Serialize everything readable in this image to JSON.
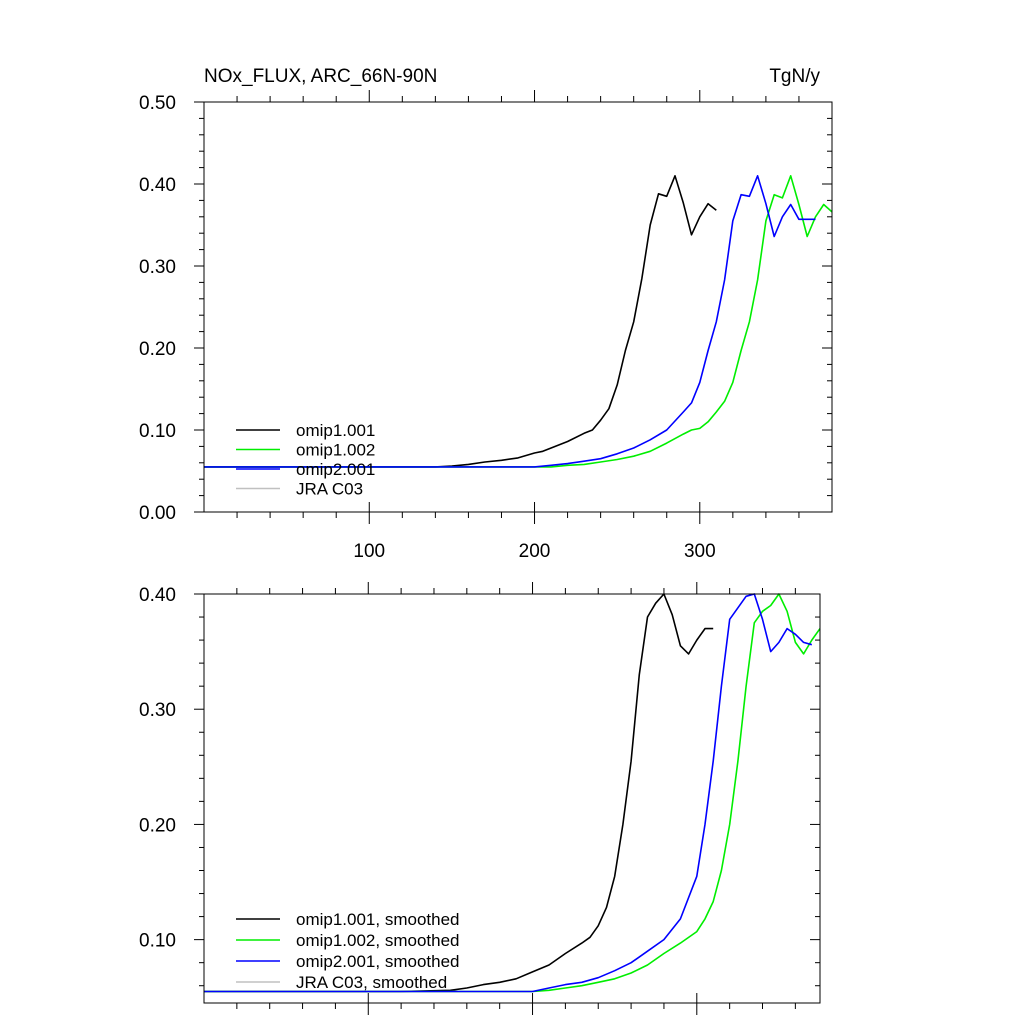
{
  "chart_data": [
    {
      "type": "line",
      "title": "NOx_FLUX, ARC_66N-90N",
      "units": "TgN/y",
      "xlabel": "",
      "ylabel": "",
      "xlim": [
        0,
        380
      ],
      "ylim": [
        0,
        0.5
      ],
      "xticks": [
        100,
        200,
        300
      ],
      "xtick_labels": [
        "100",
        "200",
        "300"
      ],
      "yticks": [
        0,
        0.1,
        0.2,
        0.3,
        0.4,
        0.5
      ],
      "ytick_labels": [
        "0.00",
        "0.10",
        "0.20",
        "0.30",
        "0.40",
        "0.50"
      ],
      "grid": false,
      "legend_position": "bottom-left",
      "series": [
        {
          "name": "omip1.001",
          "color": "#000000",
          "x": [
            0,
            20,
            40,
            60,
            80,
            100,
            120,
            140,
            150,
            160,
            170,
            180,
            190,
            200,
            205,
            210,
            220,
            230,
            235,
            240,
            245,
            250,
            255,
            260,
            265,
            270,
            275,
            280,
            285,
            290,
            295,
            300,
            305,
            310
          ],
          "y": [
            0.055,
            0.055,
            0.055,
            0.055,
            0.055,
            0.055,
            0.055,
            0.055,
            0.056,
            0.058,
            0.061,
            0.063,
            0.066,
            0.072,
            0.074,
            0.078,
            0.086,
            0.096,
            0.1,
            0.112,
            0.126,
            0.155,
            0.197,
            0.232,
            0.285,
            0.35,
            0.388,
            0.385,
            0.41,
            0.377,
            0.338,
            0.36,
            0.376,
            0.368
          ]
        },
        {
          "name": "omip1.002",
          "color": "#00ee00",
          "x": [
            0,
            40,
            80,
            120,
            160,
            200,
            210,
            220,
            230,
            240,
            250,
            260,
            270,
            280,
            290,
            295,
            300,
            305,
            310,
            315,
            320,
            325,
            330,
            335,
            340,
            345,
            350,
            355,
            360,
            365,
            370,
            375,
            380
          ],
          "y": [
            0.055,
            0.055,
            0.055,
            0.055,
            0.055,
            0.055,
            0.055,
            0.057,
            0.058,
            0.061,
            0.064,
            0.068,
            0.074,
            0.084,
            0.095,
            0.1,
            0.102,
            0.11,
            0.122,
            0.135,
            0.158,
            0.197,
            0.232,
            0.283,
            0.355,
            0.387,
            0.383,
            0.41,
            0.375,
            0.336,
            0.36,
            0.375,
            0.366
          ]
        },
        {
          "name": "omip2.001",
          "color": "#0000ff",
          "x": [
            0,
            40,
            80,
            120,
            160,
            200,
            210,
            220,
            230,
            240,
            250,
            260,
            270,
            280,
            290,
            295,
            300,
            305,
            310,
            315,
            320,
            325,
            330,
            335,
            340,
            345,
            350,
            355,
            360,
            365,
            370
          ],
          "y": [
            0.055,
            0.055,
            0.055,
            0.055,
            0.055,
            0.055,
            0.057,
            0.059,
            0.062,
            0.065,
            0.071,
            0.078,
            0.088,
            0.1,
            0.122,
            0.133,
            0.158,
            0.197,
            0.232,
            0.283,
            0.355,
            0.387,
            0.385,
            0.41,
            0.376,
            0.336,
            0.36,
            0.375,
            0.357,
            0.357,
            0.357
          ]
        },
        {
          "name": "JRA C03",
          "color": "#c0c0c0",
          "x": [],
          "y": []
        }
      ]
    },
    {
      "type": "line",
      "title": "",
      "xlabel": "",
      "ylabel": "",
      "xlim": [
        0,
        375
      ],
      "ylim": [
        0.045,
        0.4
      ],
      "xticks": [
        100,
        200,
        300
      ],
      "xtick_labels": [],
      "yticks": [
        0.1,
        0.2,
        0.3,
        0.4
      ],
      "ytick_labels": [
        "0.10",
        "0.20",
        "0.30",
        "0.40"
      ],
      "grid": false,
      "legend_position": "bottom-left",
      "series": [
        {
          "name": "omip1.001, smoothed",
          "color": "#000000",
          "x": [
            0,
            40,
            80,
            120,
            150,
            160,
            170,
            180,
            190,
            200,
            210,
            220,
            230,
            235,
            240,
            245,
            250,
            255,
            260,
            265,
            270,
            275,
            280,
            285,
            290,
            295,
            300,
            305,
            310
          ],
          "y": [
            0.055,
            0.055,
            0.055,
            0.055,
            0.056,
            0.058,
            0.061,
            0.063,
            0.066,
            0.072,
            0.078,
            0.088,
            0.097,
            0.102,
            0.112,
            0.128,
            0.155,
            0.2,
            0.255,
            0.33,
            0.38,
            0.392,
            0.4,
            0.382,
            0.355,
            0.348,
            0.36,
            0.37,
            0.37
          ]
        },
        {
          "name": "omip1.002, smoothed",
          "color": "#00ee00",
          "x": [
            0,
            40,
            80,
            120,
            160,
            200,
            210,
            220,
            230,
            240,
            250,
            260,
            270,
            280,
            290,
            300,
            305,
            310,
            315,
            320,
            325,
            330,
            335,
            340,
            345,
            350,
            355,
            360,
            365,
            370,
            375
          ],
          "y": [
            0.055,
            0.055,
            0.055,
            0.055,
            0.055,
            0.055,
            0.056,
            0.058,
            0.06,
            0.063,
            0.066,
            0.071,
            0.078,
            0.088,
            0.097,
            0.107,
            0.118,
            0.133,
            0.16,
            0.2,
            0.255,
            0.32,
            0.375,
            0.385,
            0.39,
            0.4,
            0.385,
            0.358,
            0.348,
            0.36,
            0.37
          ]
        },
        {
          "name": "omip2.001, smoothed",
          "color": "#0000ff",
          "x": [
            0,
            40,
            80,
            120,
            160,
            200,
            210,
            220,
            230,
            240,
            250,
            260,
            270,
            280,
            290,
            300,
            305,
            310,
            315,
            320,
            325,
            330,
            335,
            340,
            345,
            350,
            355,
            360,
            365,
            370
          ],
          "y": [
            0.055,
            0.055,
            0.055,
            0.055,
            0.055,
            0.055,
            0.058,
            0.061,
            0.063,
            0.067,
            0.073,
            0.08,
            0.09,
            0.1,
            0.118,
            0.155,
            0.2,
            0.255,
            0.32,
            0.378,
            0.388,
            0.398,
            0.4,
            0.378,
            0.35,
            0.358,
            0.37,
            0.365,
            0.358,
            0.356
          ]
        },
        {
          "name": "JRA C03, smoothed",
          "color": "#c0c0c0",
          "x": [],
          "y": []
        }
      ]
    }
  ]
}
